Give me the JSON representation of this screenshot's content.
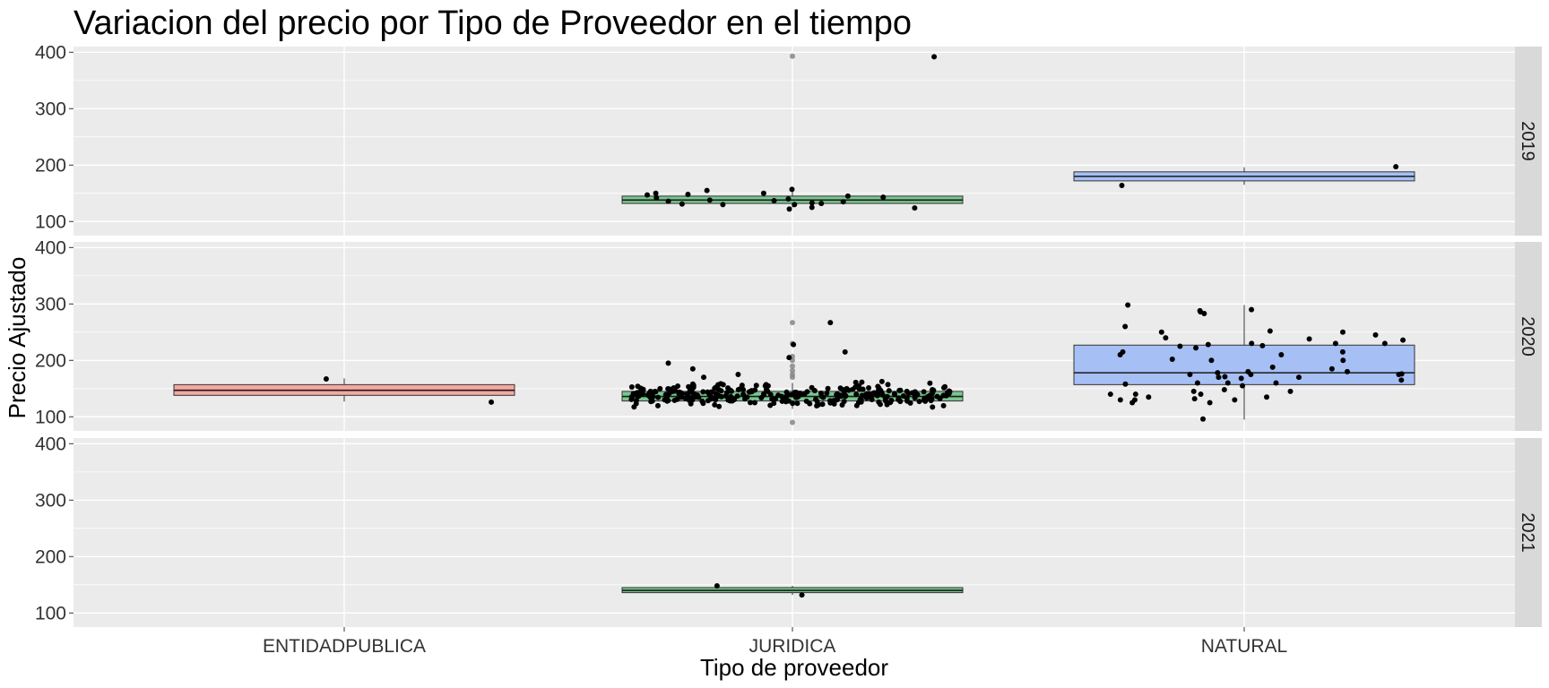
{
  "chart_data": {
    "type": "box",
    "title": "Variacion del precio por Tipo de Proveedor en el tiempo",
    "xlabel": "Tipo de proveedor",
    "ylabel": "Precio Ajustado",
    "categories": [
      "ENTIDADPUBLICA",
      "JURIDICA",
      "NATURAL"
    ],
    "yticks": [
      100,
      200,
      300,
      400
    ],
    "ylim": [
      75,
      410
    ],
    "colors": {
      "ENTIDADPUBLICA": "#f4a8a2",
      "JURIDICA": "#79c68f",
      "NATURAL": "#a6c0f5",
      "panel": "#ebebeb",
      "grid": "#ffffff",
      "strip": "#d9d9d9"
    },
    "facets": [
      {
        "label": "2019",
        "boxes": [
          {
            "category": "JURIDICA",
            "q1": 132,
            "median": 138,
            "q3": 145,
            "whisker_low": 125,
            "whisker_high": 157,
            "outliers": [
              393
            ]
          },
          {
            "category": "NATURAL",
            "q1": 172,
            "median": 180,
            "q3": 188,
            "whisker_low": 165,
            "whisker_high": 196,
            "outliers": []
          }
        ],
        "points": {
          "JURIDICA": [
            122,
            133,
            136,
            138,
            137,
            130,
            142,
            124,
            132,
            150,
            130,
            143,
            135,
            150,
            157,
            155,
            145,
            131,
            125,
            140,
            148,
            147,
            392
          ],
          "NATURAL": [
            197,
            164
          ]
        }
      },
      {
        "label": "2020",
        "boxes": [
          {
            "category": "ENTIDADPUBLICA",
            "q1": 138,
            "median": 147,
            "q3": 157,
            "whisker_low": 127,
            "whisker_high": 168,
            "outliers": []
          },
          {
            "category": "JURIDICA",
            "q1": 128,
            "median": 136,
            "q3": 145,
            "whisker_low": 114,
            "whisker_high": 160,
            "outliers": [
              90,
              170,
              175,
              182,
              190,
              200,
              207,
              230,
              267
            ]
          },
          {
            "category": "NATURAL",
            "q1": 157,
            "median": 178,
            "q3": 227,
            "whisker_low": 95,
            "whisker_high": 298,
            "outliers": []
          }
        ],
        "points": {
          "ENTIDADPUBLICA": [
            167,
            126
          ],
          "JURIDICA_summary": "about 300 jittered points, mostly between 115 and 165, a few up to 267",
          "NATURAL": [
            250,
            215,
            158,
            222,
            148,
            160,
            200,
            180,
            165,
            250,
            286,
            130,
            176,
            168,
            228,
            288,
            210,
            140,
            132,
            125,
            170,
            160,
            290,
            226,
            200,
            298,
            140,
            130,
            170,
            245,
            238,
            230,
            135,
            175,
            145,
            130,
            140,
            178,
            215,
            202,
            230,
            252,
            260,
            283,
            240,
            145,
            125,
            135,
            175,
            236,
            230,
            180,
            188,
            185,
            225,
            160,
            155,
            210,
            171,
            175,
            96
          ]
        }
      },
      {
        "label": "2021",
        "boxes": [
          {
            "category": "JURIDICA",
            "q1": 136,
            "median": 140,
            "q3": 145,
            "whisker_low": 132,
            "whisker_high": 148,
            "outliers": []
          }
        ],
        "points": {
          "JURIDICA": [
            132,
            148
          ]
        }
      }
    ],
    "grid": true,
    "legend": "none"
  }
}
